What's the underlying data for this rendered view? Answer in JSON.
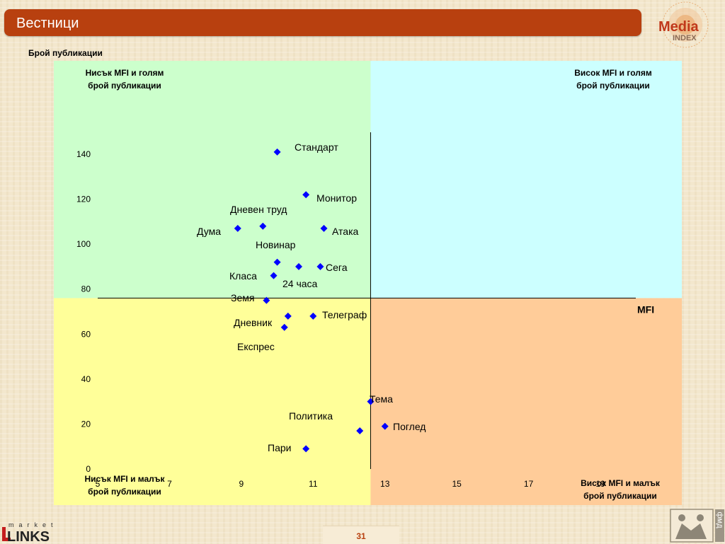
{
  "slide": {
    "title": "Вестници",
    "page_number": "31",
    "logo_text_top": "Media",
    "logo_text_bottom": "INDEX",
    "brand_bottom_small": "market",
    "brand_bottom_big": "LINKS",
    "fmd_text": "фмд"
  },
  "quadrants": {
    "top_left": [
      "Нисък MFI и голям",
      "брой публикации"
    ],
    "top_right": [
      "Висок MFI и голям",
      "брой публикации"
    ],
    "bottom_left": [
      "Нисък MFI и малък",
      "брой публикации"
    ],
    "bottom_right": [
      "Висок MFI и малък",
      "брой публикации"
    ],
    "colors": {
      "top_left": "#ccffcc",
      "top_right": "#ccffff",
      "bottom_left": "#ffff99",
      "bottom_right": "#ffcc99"
    }
  },
  "chart_data": {
    "type": "scatter",
    "ylabel": "Брой публикации",
    "xlabel": "MFI",
    "xlim": [
      5,
      19
    ],
    "ylim": [
      0,
      140
    ],
    "x_ticks": [
      5,
      7,
      9,
      11,
      13,
      15,
      17,
      19
    ],
    "y_ticks": [
      0,
      20,
      40,
      60,
      80,
      100,
      120,
      140
    ],
    "divider_x": 12.6,
    "divider_y": 76,
    "marker_color": "#0000ff",
    "points": [
      {
        "label": "Стандарт",
        "x": 10.0,
        "y": 141
      },
      {
        "label": "Монитор",
        "x": 10.8,
        "y": 122
      },
      {
        "label": "Дневен труд",
        "x": 9.6,
        "y": 108
      },
      {
        "label": "Дума",
        "x": 8.9,
        "y": 107
      },
      {
        "label": "Атака",
        "x": 11.3,
        "y": 107
      },
      {
        "label": "Новинар",
        "x": 10.0,
        "y": 92
      },
      {
        "label": "",
        "x": 10.6,
        "y": 90
      },
      {
        "label": "Сега",
        "x": 11.2,
        "y": 90
      },
      {
        "label": "Класа",
        "x": 9.9,
        "y": 86
      },
      {
        "label": "24 часа",
        "x": 9.7,
        "y": 75
      },
      {
        "label": "Телеграф",
        "x": 11.0,
        "y": 68
      },
      {
        "label": "Земя",
        "x": 10.3,
        "y": 68
      },
      {
        "label": "Дневник",
        "x": 10.2,
        "y": 63
      },
      {
        "label": "Тема",
        "x": 12.6,
        "y": 30
      },
      {
        "label": "Поглед",
        "x": 13.0,
        "y": 19
      },
      {
        "label": "Политика",
        "x": 12.3,
        "y": 17
      },
      {
        "label": "Пари",
        "x": 10.8,
        "y": 9
      }
    ],
    "annotations": [
      {
        "text": "Стандарт"
      },
      {
        "text": "Монитор"
      },
      {
        "text": "Дневен труд"
      },
      {
        "text": "Дума"
      },
      {
        "text": "Атака"
      },
      {
        "text": "Новинар"
      },
      {
        "text": "Сега"
      },
      {
        "text": "Класа"
      },
      {
        "text": "24 часа"
      },
      {
        "text": "Земя"
      },
      {
        "text": "Телеграф"
      },
      {
        "text": "Дневник"
      },
      {
        "text": "Експрес"
      },
      {
        "text": "Тема"
      },
      {
        "text": "Политика"
      },
      {
        "text": "Поглед"
      },
      {
        "text": "Пари"
      }
    ]
  }
}
